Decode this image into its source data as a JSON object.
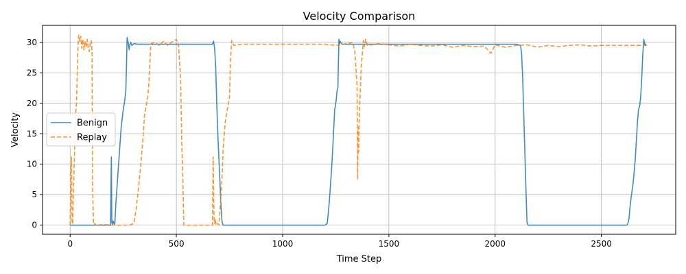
{
  "chart_data": {
    "type": "line",
    "title": "Velocity Comparison",
    "xlabel": "Time Step",
    "ylabel": "Velocity",
    "xlim": [
      -130,
      2850
    ],
    "ylim": [
      -1.5,
      32.8
    ],
    "xticks": [
      0,
      500,
      1000,
      1500,
      2000,
      2500
    ],
    "yticks": [
      0,
      5,
      10,
      15,
      20,
      25,
      30
    ],
    "grid": true,
    "legend_position": "center-left",
    "series": [
      {
        "name": "Benign",
        "color": "#1f77b4",
        "style": "solid",
        "x": [
          0,
          60,
          120,
          190,
          194,
          196,
          198,
          200,
          204,
          210,
          215,
          220,
          225,
          230,
          240,
          250,
          255,
          262,
          265,
          268,
          272,
          275,
          278,
          280,
          285,
          290,
          300,
          320,
          360,
          400,
          450,
          500,
          550,
          600,
          640,
          660,
          670,
          675,
          680,
          685,
          690,
          695,
          700,
          705,
          710,
          715,
          720,
          750,
          900,
          1100,
          1200,
          1210,
          1215,
          1220,
          1225,
          1230,
          1235,
          1240,
          1245,
          1248,
          1252,
          1256,
          1260,
          1262,
          1265,
          1268,
          1270,
          1280,
          1350,
          1450,
          1550,
          1650,
          1750,
          1850,
          1950,
          2050,
          2100,
          2120,
          2125,
          2130,
          2135,
          2140,
          2145,
          2150,
          2155,
          2160,
          2200,
          2400,
          2600,
          2620,
          2625,
          2630,
          2635,
          2640,
          2650,
          2660,
          2665,
          2670,
          2675,
          2680,
          2685,
          2690,
          2695,
          2700,
          2705,
          2710
        ],
        "y": [
          0,
          0,
          0,
          0,
          11.2,
          0.4,
          0.8,
          0.1,
          0.6,
          0.1,
          3.5,
          6,
          8.5,
          11,
          16,
          19,
          20,
          22,
          26,
          30.8,
          30.2,
          29.5,
          28.8,
          29.6,
          30,
          29.5,
          29.8,
          29.7,
          29.7,
          29.7,
          29.7,
          29.7,
          29.7,
          29.7,
          29.7,
          29.7,
          29.7,
          30.2,
          29,
          26,
          20,
          15,
          11,
          7,
          3,
          0.5,
          0,
          0,
          0,
          0,
          0,
          0.3,
          2,
          4,
          6.5,
          9,
          12,
          15.5,
          19,
          19.5,
          20.5,
          22,
          22.5,
          26,
          30.5,
          29.8,
          30.2,
          29.7,
          29.7,
          29.7,
          29.7,
          29.7,
          29.7,
          29.7,
          29.7,
          29.7,
          29.7,
          29.5,
          28,
          24,
          18,
          12,
          6,
          0.5,
          0,
          0,
          0,
          0,
          0,
          0,
          0.3,
          1,
          3,
          4.5,
          7,
          11,
          14,
          17,
          19,
          19.5,
          21,
          24,
          28,
          30.5,
          29.5,
          29.8
        ]
      },
      {
        "name": "Replay",
        "color": "#ff7f0e",
        "style": "dashed",
        "x": [
          0,
          3,
          6,
          9,
          12,
          15,
          20,
          25,
          30,
          35,
          38,
          40,
          45,
          50,
          55,
          60,
          65,
          70,
          75,
          80,
          85,
          90,
          95,
          100,
          103,
          106,
          110,
          113,
          116,
          120,
          160,
          200,
          240,
          280,
          300,
          310,
          320,
          330,
          340,
          350,
          355,
          360,
          365,
          370,
          380,
          400,
          420,
          440,
          460,
          480,
          500,
          510,
          520,
          525,
          530,
          535,
          540,
          560,
          600,
          640,
          660,
          670,
          673,
          676,
          678,
          680,
          683,
          686,
          690,
          700,
          710,
          715,
          720,
          730,
          740,
          750,
          755,
          760,
          770,
          800,
          900,
          1000,
          1100,
          1200,
          1250,
          1300,
          1330,
          1340,
          1350,
          1353,
          1356,
          1358,
          1360,
          1363,
          1366,
          1370,
          1375,
          1380,
          1385,
          1390,
          1400,
          1450,
          1500,
          1550,
          1600,
          1650,
          1700,
          1750,
          1800,
          1850,
          1900,
          1950,
          1980,
          2000,
          2050,
          2100,
          2150,
          2200,
          2250,
          2300,
          2350,
          2400,
          2450,
          2500,
          2550,
          2600,
          2650,
          2700,
          2720
        ],
        "y": [
          0,
          8.5,
          11.2,
          0.6,
          0.2,
          5,
          11,
          18,
          20,
          28,
          30,
          31.2,
          30.2,
          31,
          29,
          30.5,
          28.8,
          30.2,
          29.2,
          30.5,
          29,
          28.5,
          30,
          30.3,
          28.5,
          6,
          0.3,
          0.1,
          0.3,
          0,
          0.1,
          0,
          0,
          0,
          0.3,
          2.5,
          5.5,
          9,
          13,
          18,
          19,
          20,
          21,
          23,
          29.8,
          30,
          29.5,
          30.2,
          29.5,
          30.1,
          30.5,
          29.5,
          24,
          14,
          8,
          0,
          0,
          0,
          0,
          0,
          0,
          0,
          11.2,
          4,
          0.5,
          0.3,
          1,
          0.2,
          0.5,
          0,
          5,
          8,
          12.5,
          17,
          19,
          21,
          27.5,
          30.3,
          29.5,
          29.7,
          29.7,
          29.7,
          29.7,
          29.7,
          29.5,
          29.8,
          30,
          28.5,
          23,
          7.5,
          16,
          12,
          17,
          20,
          22.5,
          26,
          28,
          30.3,
          29.3,
          30.5,
          29.5,
          29.8,
          29.6,
          29.4,
          29.7,
          29.5,
          29.4,
          29.6,
          29.2,
          29.5,
          29.3,
          29.4,
          28.2,
          29.6,
          29.2,
          29.5,
          29.6,
          29.2,
          29.5,
          29.3,
          29.5,
          29.6,
          29.4,
          29.5,
          29.5,
          29.5,
          29.5,
          29.5,
          29.5
        ]
      }
    ]
  }
}
